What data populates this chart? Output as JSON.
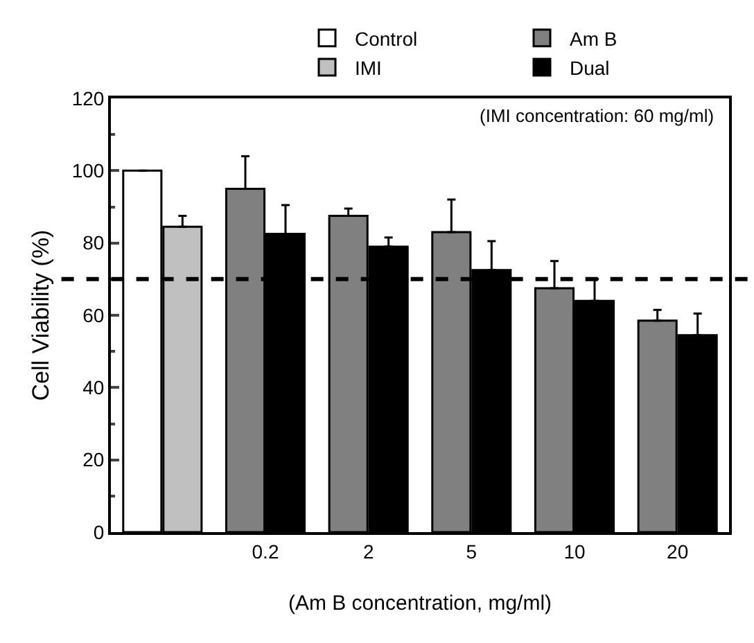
{
  "chart_data": {
    "type": "bar",
    "xlabel": "(Am B concentration, mg/ml)",
    "ylabel": "Cell Viability (%)",
    "annotations": [
      "(IMI concentration: 60 mg/ml)"
    ],
    "categories": [
      null,
      "0.2",
      "2",
      "5",
      "10",
      "20"
    ],
    "series": [
      {
        "name": "Control",
        "color": "#ffffff",
        "values": [
          100,
          null,
          null,
          null,
          null,
          null
        ],
        "errors": [
          null,
          null,
          null,
          null,
          null,
          null
        ]
      },
      {
        "name": "IMI",
        "color": "#c0c0c0",
        "values": [
          84.5,
          null,
          null,
          null,
          null,
          null
        ],
        "errors": [
          3,
          null,
          null,
          null,
          null,
          null
        ]
      },
      {
        "name": "Am B",
        "color": "#808080",
        "values": [
          null,
          95,
          87.5,
          83,
          67.5,
          58.5
        ],
        "errors": [
          null,
          9,
          2,
          9,
          7.5,
          3
        ]
      },
      {
        "name": "Dual",
        "color": "#000000",
        "values": [
          null,
          82.5,
          79,
          72.5,
          64,
          54.5
        ],
        "errors": [
          null,
          8,
          2.5,
          8,
          6,
          6
        ]
      }
    ],
    "ylim": [
      0,
      120
    ],
    "yticks": [
      0,
      20,
      40,
      60,
      80,
      100,
      120
    ],
    "ref_lines": [
      {
        "axis": "y",
        "value": 70,
        "line_style": "dashed",
        "color": "#000000"
      }
    ],
    "grid": false,
    "legend": "top"
  }
}
